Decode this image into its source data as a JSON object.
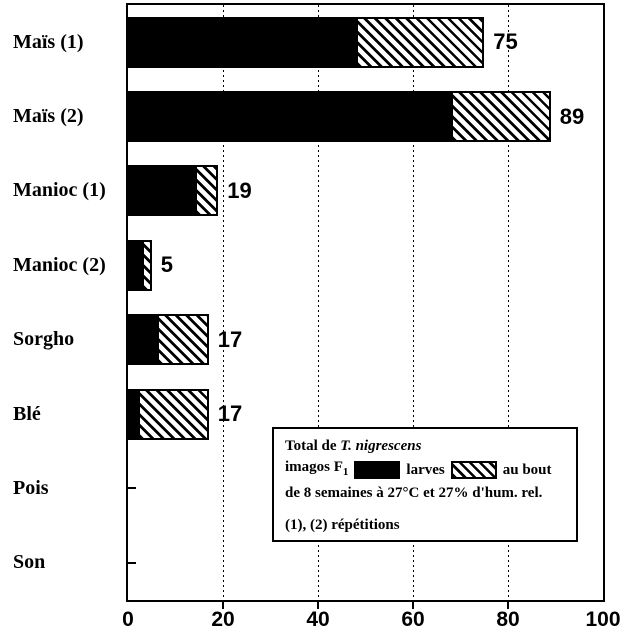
{
  "figure": {
    "background_color": "#ffffff",
    "foreground_color": "#000000"
  },
  "chart_data": {
    "type": "bar",
    "orientation": "horizontal",
    "stacked": true,
    "title": "",
    "xlabel": "",
    "ylabel": "",
    "xlim": [
      0,
      100
    ],
    "x_ticks": [
      "0",
      "20",
      "40",
      "60",
      "80",
      "100"
    ],
    "x_tick_values": [
      0,
      20,
      40,
      60,
      80,
      100
    ],
    "gridlines_at": [
      20,
      40,
      60,
      80
    ],
    "grid_style": "vertical-dotted",
    "categories": [
      "Maïs (1)",
      "Maïs (2)",
      "Manioc (1)",
      "Manioc (2)",
      "Sorgho",
      "Blé",
      "Pois",
      "Son"
    ],
    "series": [
      {
        "name": "imagos F1",
        "style": "solid-black",
        "values": [
          48,
          68,
          14,
          3,
          6,
          2,
          0,
          0
        ]
      },
      {
        "name": "larves",
        "style": "diagonal-hatch",
        "values": [
          27,
          21,
          5,
          2,
          11,
          15,
          0,
          0
        ]
      }
    ],
    "totals": [
      75,
      89,
      19,
      5,
      17,
      17,
      0,
      0
    ],
    "total_labels": [
      "75",
      "89",
      "19",
      "5",
      "17",
      "17",
      "",
      ""
    ],
    "legend": {
      "line1_prefix": "Total de ",
      "line1_species": "T. nigrescens",
      "line2_imagos": "imagos F",
      "line2_imagos_sub": "1",
      "line2_larves": "larves",
      "line2_suffix": "au bout",
      "line3": "de 8 semaines à 27°C et 27% d'hum. rel.",
      "line4": "(1), (2) répétitions"
    }
  }
}
